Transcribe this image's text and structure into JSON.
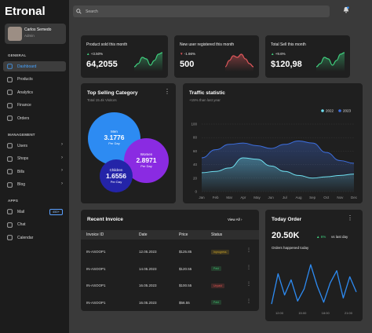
{
  "app": {
    "logo": "Etronal"
  },
  "user": {
    "name": "Carlos Semedo",
    "role": "Admin"
  },
  "search": {
    "placeholder": "Search"
  },
  "sidebar": {
    "general_label": "GENERAL",
    "general": [
      {
        "label": "Dashboard",
        "icon": "grid-icon",
        "active": true
      },
      {
        "label": "Products",
        "icon": "box-icon"
      },
      {
        "label": "Analytics",
        "icon": "chart-icon"
      },
      {
        "label": "Finance",
        "icon": "wallet-icon"
      },
      {
        "label": "Orders",
        "icon": "cart-icon"
      }
    ],
    "management_label": "MANAGEMENT",
    "management": [
      {
        "label": "Users",
        "icon": "users-icon"
      },
      {
        "label": "Shops",
        "icon": "shop-icon"
      },
      {
        "label": "Bills",
        "icon": "bill-icon"
      },
      {
        "label": "Blog",
        "icon": "blog-icon"
      }
    ],
    "apps_label": "APPS",
    "apps": [
      {
        "label": "Mail",
        "icon": "mail-icon",
        "badge": "450+"
      },
      {
        "label": "Chat",
        "icon": "chat-icon"
      },
      {
        "label": "Calendar",
        "icon": "calendar-icon"
      }
    ]
  },
  "stats": [
    {
      "title": "Product sold this month",
      "pct": "+3.50%",
      "value": "64,2055",
      "trend": "up",
      "color": "#3fcf7e"
    },
    {
      "title": "New user registered this month",
      "pct": "-1.66%",
      "value": "500",
      "trend": "down",
      "color": "#e0575b"
    },
    {
      "title": "Total Sell this month",
      "pct": "+9.6%",
      "value": "$120,98",
      "trend": "up",
      "color": "#3fcf7e"
    }
  ],
  "category": {
    "title": "Top Selling Category",
    "subtitle": "Total 15.4k Visitors",
    "bubbles": [
      {
        "label": "Men",
        "value": "3.1776",
        "sub": "Per Day",
        "color": "#2d8bf2"
      },
      {
        "label": "Women",
        "value": "2.8971",
        "sub": "Per Day",
        "color": "#8a2be2"
      },
      {
        "label": "Children",
        "value": "1.6556",
        "sub": "Per Day",
        "color": "#2424a8"
      }
    ]
  },
  "traffic": {
    "title": "Traffic statistic",
    "subtitle": "+15% than last year",
    "menu": "⋮"
  },
  "chart_data": {
    "type": "area",
    "categories": [
      "Jan",
      "Feb",
      "Mar",
      "Apr",
      "May",
      "Jun",
      "Jul",
      "Aug",
      "Sep",
      "Oct",
      "Nov",
      "Dec"
    ],
    "ylim": [
      0,
      100
    ],
    "yticks": [
      0,
      20,
      40,
      60,
      80,
      100
    ],
    "grid": true,
    "legend_position": "top-right",
    "series": [
      {
        "name": "2022",
        "color": "#6fe0f0",
        "values": [
          28,
          30,
          35,
          50,
          48,
          38,
          30,
          24,
          20,
          22,
          24,
          26
        ]
      },
      {
        "name": "2023",
        "color": "#3d6fe0",
        "values": [
          50,
          62,
          70,
          72,
          68,
          64,
          70,
          75,
          72,
          58,
          46,
          42
        ]
      }
    ]
  },
  "invoice": {
    "title": "Recent Invoice",
    "view_all": "View All",
    "columns": [
      "Invoice ID",
      "Date",
      "Price",
      "Status"
    ],
    "rows": [
      {
        "id": "IN-ASOOP1",
        "date": "12.05.2023",
        "price": "$125.85",
        "status": "Inprogress",
        "status_color": "#c9a227"
      },
      {
        "id": "IN-ASOOP1",
        "date": "14.05.2023",
        "price": "$120.55",
        "status": "Paid",
        "status_color": "#3fb86b"
      },
      {
        "id": "IN-ASOOP1",
        "date": "16.05.2023",
        "price": "$100.55",
        "status": "Unpaid",
        "status_color": "#d9534f"
      },
      {
        "id": "IN-ASOOP1",
        "date": "16.05.2023",
        "price": "$56.55",
        "status": "Paid",
        "status_color": "#3fb86b"
      }
    ]
  },
  "today": {
    "title": "Today Order",
    "value": "20.50K",
    "pct": "6%",
    "compare": "vs last day",
    "caption": "Orders happened today",
    "x_labels": [
      "12:00",
      "15:00",
      "18:00",
      "21:00"
    ],
    "chart_data": {
      "type": "line",
      "color": "#2d8bf2",
      "values": [
        5,
        55,
        20,
        45,
        10,
        30,
        70,
        35,
        8,
        40,
        60,
        15,
        50,
        25
      ]
    }
  }
}
